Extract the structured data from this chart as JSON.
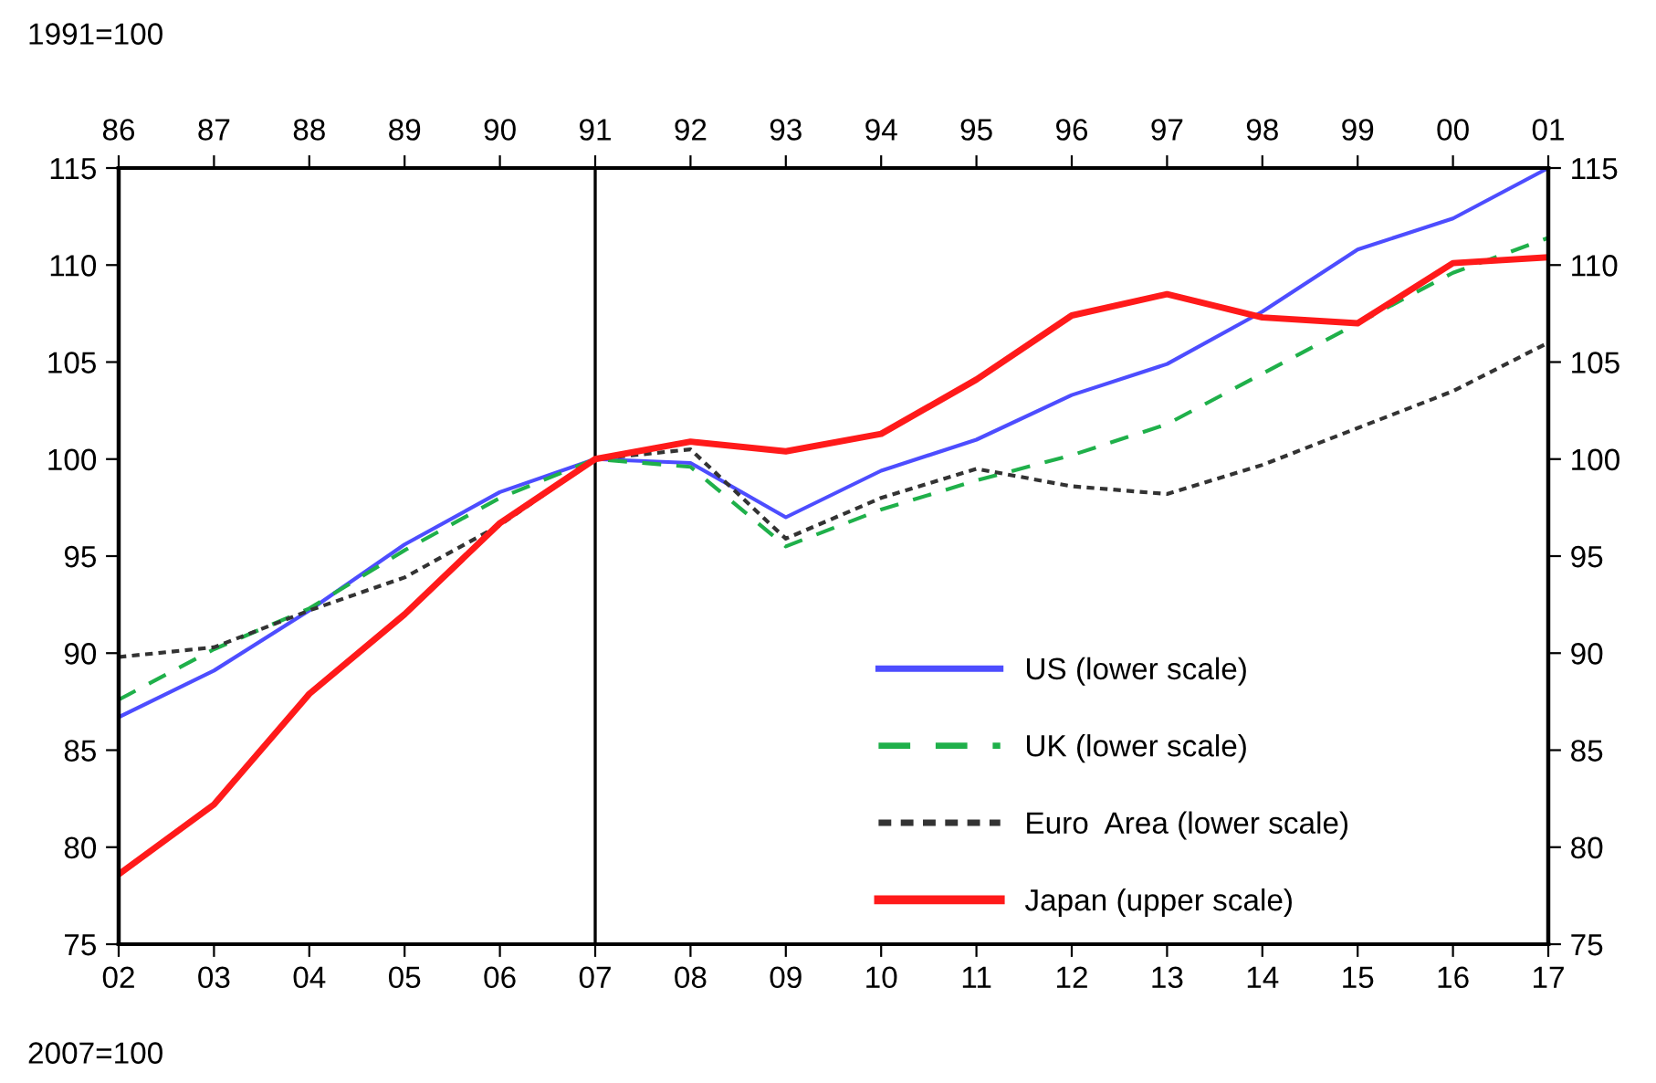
{
  "chart_data": {
    "type": "line",
    "xlabel": "2007=100",
    "x2label": "1991=100",
    "x": [
      2002,
      2003,
      2004,
      2005,
      2006,
      2007,
      2008,
      2009,
      2010,
      2011,
      2012,
      2013,
      2014,
      2015,
      2016,
      2017
    ],
    "series": [
      {
        "name": "US (lower scale)",
        "color": "#4d4dff",
        "line_style": "solid",
        "values": [
          86.7,
          89.1,
          92.2,
          95.6,
          98.3,
          100,
          99.8,
          97.0,
          99.4,
          101.0,
          103.3,
          104.9,
          107.6,
          110.8,
          112.4,
          115.0
        ]
      },
      {
        "name": "UK (lower scale)",
        "color": "#1fb04a",
        "line_style": "dashed",
        "values": [
          87.6,
          90.2,
          92.3,
          95.3,
          98.0,
          100,
          99.6,
          95.5,
          97.4,
          98.9,
          100.2,
          101.8,
          104.4,
          107.0,
          109.6,
          111.4
        ]
      },
      {
        "name": "Euro  Area (lower scale)",
        "color": "#333333",
        "line_style": "dotted",
        "values": [
          89.8,
          90.3,
          92.2,
          93.9,
          96.6,
          100,
          100.5,
          95.9,
          98.0,
          99.5,
          98.6,
          98.2,
          99.7,
          101.6,
          103.5,
          106.0
        ]
      },
      {
        "name": "Japan (upper scale)",
        "color": "#ff1a1a",
        "line_style": "solid",
        "axis": "x2",
        "x": [
          1986,
          1987,
          1988,
          1989,
          1990,
          1991,
          1992,
          1993,
          1994,
          1995,
          1996,
          1997,
          1998,
          1999,
          2000,
          2001
        ],
        "values": [
          78.6,
          82.2,
          87.9,
          92.0,
          96.7,
          100,
          100.9,
          100.4,
          101.3,
          104.1,
          107.4,
          108.5,
          107.3,
          107.0,
          110.1,
          110.4
        ]
      }
    ],
    "xlim": [
      2002,
      2017
    ],
    "xticks": [
      {
        "value": 2002,
        "label": "02"
      },
      {
        "value": 2003,
        "label": "03"
      },
      {
        "value": 2004,
        "label": "04"
      },
      {
        "value": 2005,
        "label": "05"
      },
      {
        "value": 2006,
        "label": "06"
      },
      {
        "value": 2007,
        "label": "07"
      },
      {
        "value": 2008,
        "label": "08"
      },
      {
        "value": 2009,
        "label": "09"
      },
      {
        "value": 2010,
        "label": "10"
      },
      {
        "value": 2011,
        "label": "11"
      },
      {
        "value": 2012,
        "label": "12"
      },
      {
        "value": 2013,
        "label": "13"
      },
      {
        "value": 2014,
        "label": "14"
      },
      {
        "value": 2015,
        "label": "15"
      },
      {
        "value": 2016,
        "label": "16"
      },
      {
        "value": 2017,
        "label": "17"
      }
    ],
    "x2lim": [
      1986,
      2001
    ],
    "x2ticks": [
      {
        "value": 1986,
        "label": "86"
      },
      {
        "value": 1987,
        "label": "87"
      },
      {
        "value": 1988,
        "label": "88"
      },
      {
        "value": 1989,
        "label": "89"
      },
      {
        "value": 1990,
        "label": "90"
      },
      {
        "value": 1991,
        "label": "91"
      },
      {
        "value": 1992,
        "label": "92"
      },
      {
        "value": 1993,
        "label": "93"
      },
      {
        "value": 1994,
        "label": "94"
      },
      {
        "value": 1995,
        "label": "95"
      },
      {
        "value": 1996,
        "label": "96"
      },
      {
        "value": 1997,
        "label": "97"
      },
      {
        "value": 1998,
        "label": "98"
      },
      {
        "value": 1999,
        "label": "99"
      },
      {
        "value": 2000,
        "label": "00"
      },
      {
        "value": 2001,
        "label": "01"
      }
    ],
    "ylim": [
      75,
      115
    ],
    "yticks": [
      75,
      80,
      85,
      90,
      95,
      100,
      105,
      110,
      115
    ],
    "y2lim": [
      75,
      115
    ],
    "y2ticks": [
      75,
      80,
      85,
      90,
      95,
      100,
      105,
      110,
      115
    ],
    "ref_lines": [
      {
        "axis": "x",
        "value": 2007,
        "color": "#000000",
        "line_style": "solid"
      }
    ],
    "grid": false,
    "legend": "bottom right",
    "marker": "none"
  }
}
